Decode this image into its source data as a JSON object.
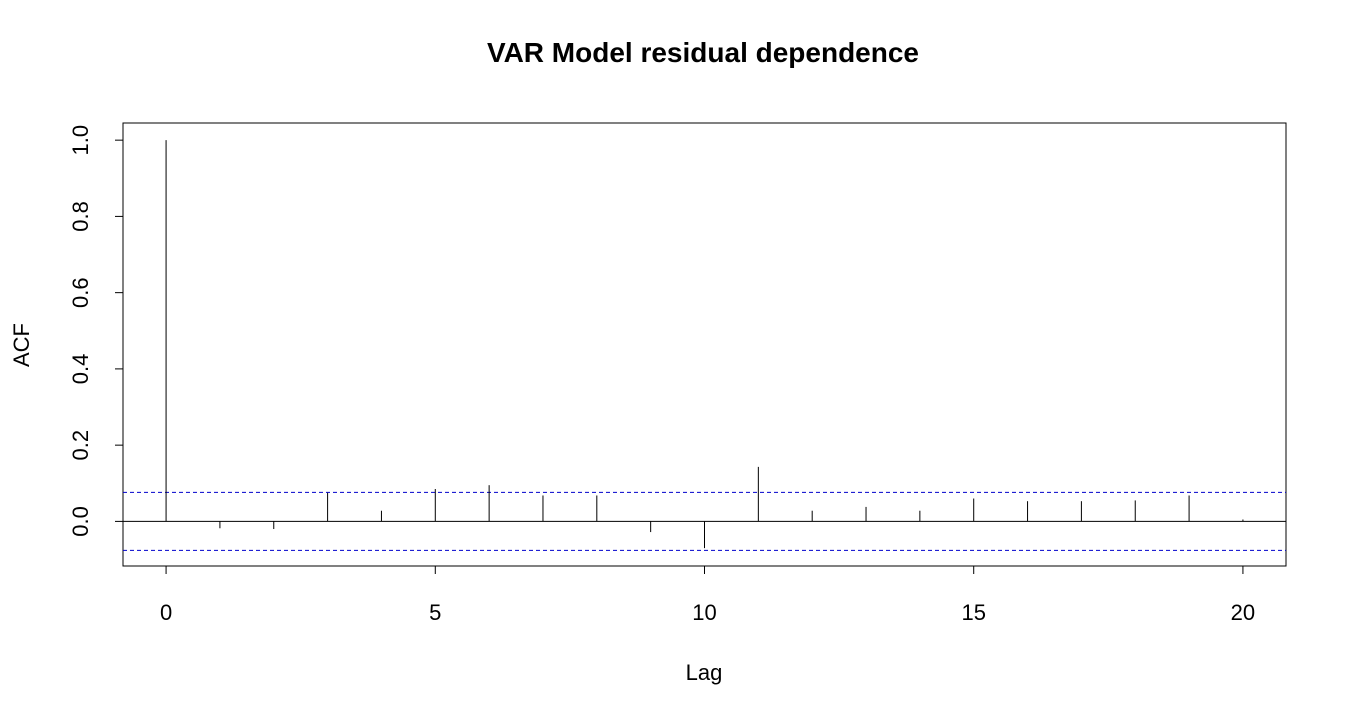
{
  "chart_data": {
    "type": "bar",
    "title": "VAR Model residual dependence",
    "xlabel": "Lag",
    "ylabel": "ACF",
    "x": [
      0,
      1,
      2,
      3,
      4,
      5,
      6,
      7,
      8,
      9,
      10,
      11,
      12,
      13,
      14,
      15,
      16,
      17,
      18,
      19,
      20
    ],
    "values": [
      1.0,
      -0.018,
      -0.02,
      0.075,
      0.028,
      0.085,
      0.095,
      0.068,
      0.068,
      -0.028,
      -0.07,
      0.143,
      0.028,
      0.038,
      0.028,
      0.06,
      0.053,
      0.053,
      0.055,
      0.068,
      0.005
    ],
    "confidence_bound": 0.076,
    "confidence_line_color": "#0000cc",
    "xlim": [
      -0.8,
      20.8
    ],
    "ylim": [
      -0.117,
      1.045
    ],
    "x_ticks": [
      "0",
      "5",
      "10",
      "15",
      "20"
    ],
    "y_ticks": [
      "0.0",
      "0.2",
      "0.4",
      "0.6",
      "0.8",
      "1.0"
    ],
    "grid": false,
    "legend": "none"
  }
}
